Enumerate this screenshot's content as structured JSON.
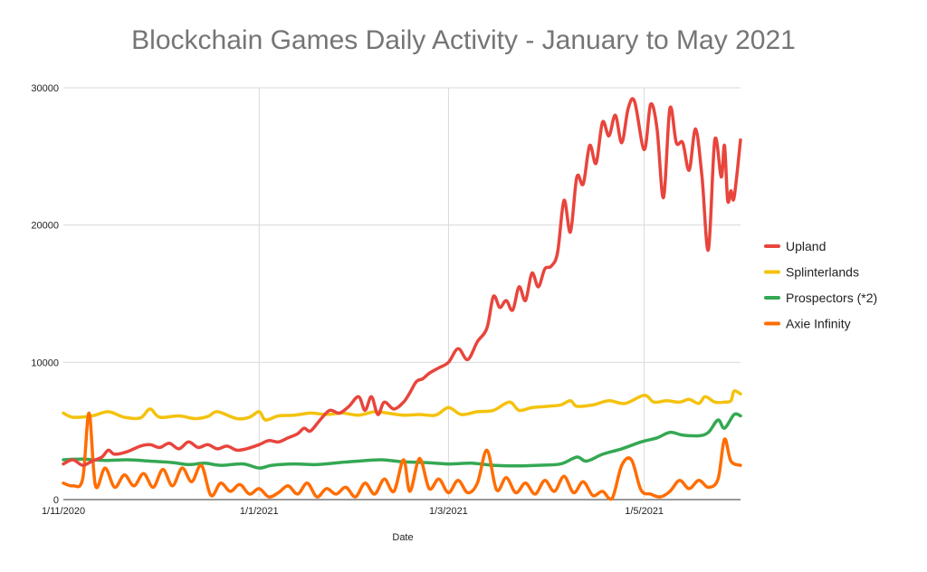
{
  "chart_data": {
    "type": "line",
    "title": "Blockchain Games Daily Activity - January to May 2021",
    "xlabel": "Date",
    "ylabel": "",
    "ylim": [
      0,
      30000
    ],
    "yticks": [
      0,
      10000,
      20000,
      30000
    ],
    "xlim": [
      "2020-11-01",
      "2021-05-31"
    ],
    "xticks": [
      {
        "date": "2020-11-01",
        "label": "1/11/2020"
      },
      {
        "date": "2021-01-01",
        "label": "1/1/2021"
      },
      {
        "date": "2021-03-01",
        "label": "1/3/2021"
      },
      {
        "date": "2021-05-01",
        "label": "1/5/2021"
      }
    ],
    "grid": true,
    "legend_position": "right",
    "series": [
      {
        "name": "Upland",
        "color": "#e8453c",
        "points": [
          [
            "2020-11-01",
            2600
          ],
          [
            "2020-11-04",
            2900
          ],
          [
            "2020-11-07",
            2500
          ],
          [
            "2020-11-10",
            2800
          ],
          [
            "2020-11-13",
            3100
          ],
          [
            "2020-11-15",
            3600
          ],
          [
            "2020-11-17",
            3300
          ],
          [
            "2020-11-21",
            3500
          ],
          [
            "2020-11-25",
            3900
          ],
          [
            "2020-11-28",
            4000
          ],
          [
            "2020-12-01",
            3800
          ],
          [
            "2020-12-04",
            4100
          ],
          [
            "2020-12-07",
            3700
          ],
          [
            "2020-12-10",
            4200
          ],
          [
            "2020-12-13",
            3800
          ],
          [
            "2020-12-16",
            4000
          ],
          [
            "2020-12-19",
            3700
          ],
          [
            "2020-12-22",
            3900
          ],
          [
            "2020-12-25",
            3600
          ],
          [
            "2020-12-28",
            3700
          ],
          [
            "2021-01-01",
            4000
          ],
          [
            "2021-01-04",
            4300
          ],
          [
            "2021-01-07",
            4200
          ],
          [
            "2021-01-10",
            4500
          ],
          [
            "2021-01-13",
            4800
          ],
          [
            "2021-01-15",
            5200
          ],
          [
            "2021-01-17",
            5000
          ],
          [
            "2021-01-20",
            5800
          ],
          [
            "2021-01-23",
            6500
          ],
          [
            "2021-01-26",
            6300
          ],
          [
            "2021-01-29",
            6800
          ],
          [
            "2021-02-01",
            7500
          ],
          [
            "2021-02-03",
            6500
          ],
          [
            "2021-02-05",
            7500
          ],
          [
            "2021-02-07",
            6200
          ],
          [
            "2021-02-09",
            7100
          ],
          [
            "2021-02-12",
            6600
          ],
          [
            "2021-02-15",
            7100
          ],
          [
            "2021-02-17",
            7800
          ],
          [
            "2021-02-19",
            8600
          ],
          [
            "2021-02-21",
            8800
          ],
          [
            "2021-02-23",
            9200
          ],
          [
            "2021-02-26",
            9600
          ],
          [
            "2021-03-01",
            10000
          ],
          [
            "2021-03-04",
            11000
          ],
          [
            "2021-03-07",
            10200
          ],
          [
            "2021-03-10",
            11500
          ],
          [
            "2021-03-13",
            12500
          ],
          [
            "2021-03-15",
            14800
          ],
          [
            "2021-03-17",
            14000
          ],
          [
            "2021-03-19",
            14500
          ],
          [
            "2021-03-21",
            13800
          ],
          [
            "2021-03-23",
            15500
          ],
          [
            "2021-03-25",
            14500
          ],
          [
            "2021-03-27",
            16500
          ],
          [
            "2021-03-29",
            15500
          ],
          [
            "2021-03-31",
            16800
          ],
          [
            "2021-04-02",
            17000
          ],
          [
            "2021-04-04",
            18000
          ],
          [
            "2021-04-06",
            21800
          ],
          [
            "2021-04-08",
            19500
          ],
          [
            "2021-04-10",
            23500
          ],
          [
            "2021-04-12",
            23000
          ],
          [
            "2021-04-14",
            25800
          ],
          [
            "2021-04-16",
            24500
          ],
          [
            "2021-04-18",
            27500
          ],
          [
            "2021-04-20",
            26500
          ],
          [
            "2021-04-22",
            28000
          ],
          [
            "2021-04-24",
            26000
          ],
          [
            "2021-04-26",
            28500
          ],
          [
            "2021-04-28",
            29000
          ],
          [
            "2021-05-01",
            25500
          ],
          [
            "2021-05-03",
            28800
          ],
          [
            "2021-05-05",
            27000
          ],
          [
            "2021-05-07",
            22000
          ],
          [
            "2021-05-09",
            28500
          ],
          [
            "2021-05-11",
            26000
          ],
          [
            "2021-05-13",
            26000
          ],
          [
            "2021-05-15",
            24000
          ],
          [
            "2021-05-17",
            27000
          ],
          [
            "2021-05-19",
            23500
          ],
          [
            "2021-05-21",
            18200
          ],
          [
            "2021-05-23",
            26200
          ],
          [
            "2021-05-25",
            23500
          ],
          [
            "2021-05-26",
            25800
          ],
          [
            "2021-05-27",
            21800
          ],
          [
            "2021-05-28",
            22500
          ],
          [
            "2021-05-29",
            22000
          ],
          [
            "2021-05-31",
            26200
          ]
        ]
      },
      {
        "name": "Splinterlands",
        "color": "#f4c20d",
        "points": [
          [
            "2020-11-01",
            6300
          ],
          [
            "2020-11-04",
            6000
          ],
          [
            "2020-11-10",
            6100
          ],
          [
            "2020-11-15",
            6400
          ],
          [
            "2020-11-20",
            6000
          ],
          [
            "2020-11-25",
            5950
          ],
          [
            "2020-11-28",
            6600
          ],
          [
            "2020-12-01",
            6000
          ],
          [
            "2020-12-07",
            6100
          ],
          [
            "2020-12-12",
            5900
          ],
          [
            "2020-12-16",
            6050
          ],
          [
            "2020-12-19",
            6400
          ],
          [
            "2020-12-25",
            5900
          ],
          [
            "2020-12-29",
            6000
          ],
          [
            "2021-01-01",
            6400
          ],
          [
            "2021-01-03",
            5800
          ],
          [
            "2021-01-07",
            6100
          ],
          [
            "2021-01-12",
            6150
          ],
          [
            "2021-01-17",
            6300
          ],
          [
            "2021-01-22",
            6200
          ],
          [
            "2021-01-27",
            6300
          ],
          [
            "2021-02-01",
            6150
          ],
          [
            "2021-02-06",
            6400
          ],
          [
            "2021-02-10",
            6300
          ],
          [
            "2021-02-15",
            6150
          ],
          [
            "2021-02-20",
            6200
          ],
          [
            "2021-02-25",
            6150
          ],
          [
            "2021-03-01",
            6700
          ],
          [
            "2021-03-05",
            6200
          ],
          [
            "2021-03-10",
            6400
          ],
          [
            "2021-03-15",
            6500
          ],
          [
            "2021-03-20",
            7100
          ],
          [
            "2021-03-23",
            6500
          ],
          [
            "2021-03-27",
            6700
          ],
          [
            "2021-04-01",
            6800
          ],
          [
            "2021-04-05",
            6900
          ],
          [
            "2021-04-08",
            7200
          ],
          [
            "2021-04-10",
            6800
          ],
          [
            "2021-04-15",
            6900
          ],
          [
            "2021-04-20",
            7200
          ],
          [
            "2021-04-25",
            7000
          ],
          [
            "2021-05-01",
            7600
          ],
          [
            "2021-05-04",
            7100
          ],
          [
            "2021-05-08",
            7200
          ],
          [
            "2021-05-12",
            7100
          ],
          [
            "2021-05-15",
            7300
          ],
          [
            "2021-05-18",
            7000
          ],
          [
            "2021-05-20",
            7500
          ],
          [
            "2021-05-23",
            7100
          ],
          [
            "2021-05-26",
            7100
          ],
          [
            "2021-05-28",
            7200
          ],
          [
            "2021-05-29",
            7900
          ],
          [
            "2021-05-31",
            7700
          ]
        ]
      },
      {
        "name": "Prospectors (*2)",
        "color": "#34a853",
        "points": [
          [
            "2020-11-01",
            2900
          ],
          [
            "2020-11-07",
            2950
          ],
          [
            "2020-11-14",
            2850
          ],
          [
            "2020-11-21",
            2900
          ],
          [
            "2020-11-28",
            2800
          ],
          [
            "2020-12-05",
            2700
          ],
          [
            "2020-12-10",
            2550
          ],
          [
            "2020-12-15",
            2650
          ],
          [
            "2020-12-20",
            2500
          ],
          [
            "2020-12-27",
            2600
          ],
          [
            "2021-01-01",
            2300
          ],
          [
            "2021-01-05",
            2500
          ],
          [
            "2021-01-12",
            2600
          ],
          [
            "2021-01-19",
            2550
          ],
          [
            "2021-01-26",
            2700
          ],
          [
            "2021-02-01",
            2800
          ],
          [
            "2021-02-08",
            2900
          ],
          [
            "2021-02-15",
            2750
          ],
          [
            "2021-02-22",
            2700
          ],
          [
            "2021-03-01",
            2600
          ],
          [
            "2021-03-08",
            2650
          ],
          [
            "2021-03-15",
            2500
          ],
          [
            "2021-03-22",
            2450
          ],
          [
            "2021-03-29",
            2500
          ],
          [
            "2021-04-05",
            2600
          ],
          [
            "2021-04-10",
            3100
          ],
          [
            "2021-04-13",
            2800
          ],
          [
            "2021-04-18",
            3300
          ],
          [
            "2021-04-24",
            3700
          ],
          [
            "2021-04-30",
            4200
          ],
          [
            "2021-05-05",
            4500
          ],
          [
            "2021-05-09",
            4900
          ],
          [
            "2021-05-13",
            4700
          ],
          [
            "2021-05-18",
            4650
          ],
          [
            "2021-05-21",
            4900
          ],
          [
            "2021-05-24",
            5800
          ],
          [
            "2021-05-26",
            5200
          ],
          [
            "2021-05-29",
            6200
          ],
          [
            "2021-05-31",
            6100
          ]
        ]
      },
      {
        "name": "Axie Infinity",
        "color": "#ff6d01",
        "points": [
          [
            "2020-11-01",
            1200
          ],
          [
            "2020-11-04",
            1000
          ],
          [
            "2020-11-07",
            1500
          ],
          [
            "2020-11-09",
            6300
          ],
          [
            "2020-11-11",
            1000
          ],
          [
            "2020-11-14",
            2300
          ],
          [
            "2020-11-17",
            900
          ],
          [
            "2020-11-20",
            1800
          ],
          [
            "2020-11-23",
            1000
          ],
          [
            "2020-11-26",
            1900
          ],
          [
            "2020-11-29",
            900
          ],
          [
            "2020-12-02",
            2200
          ],
          [
            "2020-12-05",
            1000
          ],
          [
            "2020-12-08",
            2300
          ],
          [
            "2020-12-11",
            1300
          ],
          [
            "2020-12-14",
            2500
          ],
          [
            "2020-12-17",
            300
          ],
          [
            "2020-12-20",
            1200
          ],
          [
            "2020-12-23",
            600
          ],
          [
            "2020-12-26",
            1100
          ],
          [
            "2020-12-29",
            400
          ],
          [
            "2021-01-01",
            800
          ],
          [
            "2021-01-04",
            200
          ],
          [
            "2021-01-07",
            500
          ],
          [
            "2021-01-10",
            1000
          ],
          [
            "2021-01-13",
            400
          ],
          [
            "2021-01-16",
            1200
          ],
          [
            "2021-01-19",
            200
          ],
          [
            "2021-01-22",
            800
          ],
          [
            "2021-01-25",
            400
          ],
          [
            "2021-01-28",
            900
          ],
          [
            "2021-01-31",
            200
          ],
          [
            "2021-02-03",
            1200
          ],
          [
            "2021-02-06",
            400
          ],
          [
            "2021-02-09",
            1500
          ],
          [
            "2021-02-12",
            600
          ],
          [
            "2021-02-15",
            2900
          ],
          [
            "2021-02-17",
            600
          ],
          [
            "2021-02-20",
            3000
          ],
          [
            "2021-02-23",
            800
          ],
          [
            "2021-02-26",
            1500
          ],
          [
            "2021-03-01",
            500
          ],
          [
            "2021-03-04",
            1400
          ],
          [
            "2021-03-07",
            500
          ],
          [
            "2021-03-10",
            1200
          ],
          [
            "2021-03-13",
            3600
          ],
          [
            "2021-03-16",
            700
          ],
          [
            "2021-03-19",
            1600
          ],
          [
            "2021-03-22",
            500
          ],
          [
            "2021-03-25",
            1200
          ],
          [
            "2021-03-28",
            400
          ],
          [
            "2021-03-31",
            1400
          ],
          [
            "2021-04-03",
            600
          ],
          [
            "2021-04-06",
            1700
          ],
          [
            "2021-04-09",
            500
          ],
          [
            "2021-04-12",
            1300
          ],
          [
            "2021-04-15",
            300
          ],
          [
            "2021-04-18",
            600
          ],
          [
            "2021-04-21",
            100
          ],
          [
            "2021-04-24",
            2500
          ],
          [
            "2021-04-27",
            2900
          ],
          [
            "2021-04-30",
            700
          ],
          [
            "2021-05-03",
            400
          ],
          [
            "2021-05-06",
            200
          ],
          [
            "2021-05-09",
            600
          ],
          [
            "2021-05-12",
            1400
          ],
          [
            "2021-05-15",
            800
          ],
          [
            "2021-05-18",
            1400
          ],
          [
            "2021-05-21",
            900
          ],
          [
            "2021-05-24",
            1500
          ],
          [
            "2021-05-26",
            4400
          ],
          [
            "2021-05-28",
            2800
          ],
          [
            "2021-05-31",
            2500
          ]
        ]
      }
    ]
  }
}
